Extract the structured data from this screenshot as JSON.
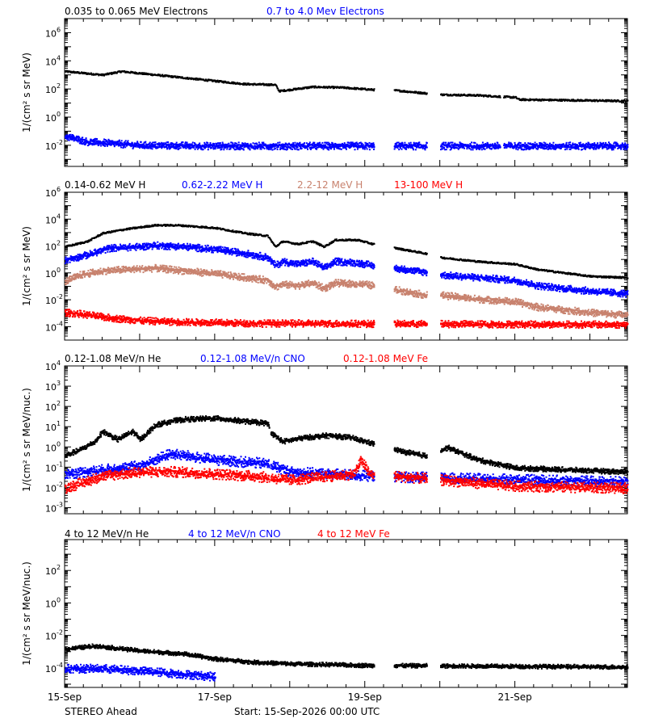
{
  "colors": {
    "black": "#000000",
    "blue": "#0000ff",
    "tan": "#c8826e",
    "red": "#ff0000"
  },
  "footer": {
    "left": "STEREO Ahead",
    "center": "Start: 15-Sep-2026 00:00 UTC"
  },
  "x_axis": {
    "range_days": [
      0,
      7.5
    ],
    "tick_labels": [
      "15-Sep",
      "17-Sep",
      "19-Sep",
      "21-Sep"
    ],
    "tick_days": [
      0,
      2,
      4,
      6
    ]
  },
  "chart_data": [
    {
      "type": "scatter",
      "ylabel": "1/(cm² s sr MeV)",
      "yscale": "log",
      "ylim_exp": [
        -3.5,
        7
      ],
      "ytick_exp": [
        -2,
        0,
        2,
        4,
        6
      ],
      "data_gaps_days": [
        [
          4.12,
          4.38
        ],
        [
          4.82,
          5.0
        ],
        [
          5.8,
          5.84
        ]
      ],
      "series": [
        {
          "name": "0.035 to 0.065 MeV Electrons",
          "color": "#000000",
          "log_points": [
            [
              0,
              3.3
            ],
            [
              0.5,
              3.05
            ],
            [
              0.75,
              3.3
            ],
            [
              1.3,
              3.0
            ],
            [
              2.4,
              2.4
            ],
            [
              2.8,
              2.35
            ],
            [
              2.85,
              1.9
            ],
            [
              3.3,
              2.2
            ],
            [
              3.7,
              2.15
            ],
            [
              4.1,
              2.0
            ],
            [
              4.4,
              1.95
            ],
            [
              4.8,
              1.75
            ],
            [
              5.0,
              1.65
            ],
            [
              5.5,
              1.6
            ],
            [
              6.0,
              1.45
            ],
            [
              6.05,
              1.3
            ],
            [
              7.5,
              1.2
            ]
          ]
        },
        {
          "name": "0.7 to 4.0 Mev Electrons",
          "color": "#0000ff",
          "log_points": [
            [
              0,
              -1.3
            ],
            [
              0.3,
              -1.7
            ],
            [
              1.0,
              -1.95
            ],
            [
              2.0,
              -2.0
            ],
            [
              3.0,
              -2.0
            ],
            [
              7.5,
              -2.0
            ]
          ]
        }
      ]
    },
    {
      "type": "scatter",
      "ylabel": "1/(cm² s sr MeV)",
      "yscale": "log",
      "ylim_exp": [
        -5,
        6
      ],
      "ytick_exp": [
        -4,
        -2,
        0,
        2,
        4,
        6
      ],
      "data_gaps_days": [
        [
          4.12,
          4.38
        ],
        [
          4.82,
          5.0
        ]
      ],
      "series": [
        {
          "name": "0.14-0.62 MeV H",
          "color": "#000000",
          "log_points": [
            [
              0,
              2.0
            ],
            [
              0.3,
              2.4
            ],
            [
              0.5,
              3.0
            ],
            [
              0.8,
              3.3
            ],
            [
              1.2,
              3.6
            ],
            [
              1.5,
              3.6
            ],
            [
              2.0,
              3.4
            ],
            [
              2.4,
              3.0
            ],
            [
              2.7,
              2.8
            ],
            [
              2.8,
              2.0
            ],
            [
              2.9,
              2.4
            ],
            [
              3.1,
              2.2
            ],
            [
              3.3,
              2.4
            ],
            [
              3.45,
              2.0
            ],
            [
              3.6,
              2.5
            ],
            [
              3.9,
              2.5
            ],
            [
              4.1,
              2.2
            ],
            [
              4.4,
              1.9
            ],
            [
              4.8,
              1.5
            ],
            [
              5.0,
              1.2
            ],
            [
              5.5,
              0.9
            ],
            [
              6.0,
              0.7
            ],
            [
              6.3,
              0.3
            ],
            [
              7.0,
              -0.2
            ],
            [
              7.5,
              -0.3
            ]
          ]
        },
        {
          "name": "0.62-2.22 MeV H",
          "color": "#0000ff",
          "log_points": [
            [
              0,
              1.0
            ],
            [
              0.3,
              1.4
            ],
            [
              0.6,
              1.9
            ],
            [
              1.0,
              2.0
            ],
            [
              1.2,
              2.1
            ],
            [
              1.6,
              2.0
            ],
            [
              2.0,
              1.8
            ],
            [
              2.4,
              1.5
            ],
            [
              2.7,
              1.2
            ],
            [
              2.8,
              0.6
            ],
            [
              2.9,
              0.9
            ],
            [
              3.1,
              0.7
            ],
            [
              3.3,
              0.9
            ],
            [
              3.45,
              0.4
            ],
            [
              3.6,
              0.9
            ],
            [
              3.9,
              0.8
            ],
            [
              4.1,
              0.6
            ],
            [
              4.4,
              0.4
            ],
            [
              4.8,
              0.1
            ],
            [
              5.0,
              -0.1
            ],
            [
              5.5,
              -0.3
            ],
            [
              6.0,
              -0.5
            ],
            [
              6.3,
              -0.9
            ],
            [
              7.0,
              -1.3
            ],
            [
              7.5,
              -1.5
            ]
          ]
        },
        {
          "name": "2.2-12 MeV H",
          "color": "#c8826e",
          "log_points": [
            [
              0,
              -0.6
            ],
            [
              0.2,
              -0.1
            ],
            [
              0.5,
              0.2
            ],
            [
              0.8,
              0.3
            ],
            [
              1.2,
              0.4
            ],
            [
              1.6,
              0.2
            ],
            [
              2.0,
              0.0
            ],
            [
              2.4,
              -0.3
            ],
            [
              2.7,
              -0.5
            ],
            [
              2.8,
              -1.0
            ],
            [
              2.9,
              -0.8
            ],
            [
              3.1,
              -0.9
            ],
            [
              3.3,
              -0.7
            ],
            [
              3.45,
              -1.1
            ],
            [
              3.6,
              -0.7
            ],
            [
              4.0,
              -0.8
            ],
            [
              4.1,
              -0.9
            ],
            [
              4.4,
              -1.2
            ],
            [
              4.8,
              -1.6
            ],
            [
              5.0,
              -1.6
            ],
            [
              5.5,
              -1.9
            ],
            [
              6.0,
              -2.1
            ],
            [
              6.3,
              -2.5
            ],
            [
              7.0,
              -2.9
            ],
            [
              7.5,
              -3.1
            ]
          ]
        },
        {
          "name": "13-100 MeV H",
          "color": "#ff0000",
          "log_points": [
            [
              0,
              -2.9
            ],
            [
              0.2,
              -3.0
            ],
            [
              0.6,
              -3.3
            ],
            [
              1.0,
              -3.5
            ],
            [
              1.5,
              -3.6
            ],
            [
              2.5,
              -3.7
            ],
            [
              7.5,
              -3.8
            ]
          ]
        }
      ]
    },
    {
      "type": "scatter",
      "ylabel": "1/(cm² s sr MeV/nuc.)",
      "yscale": "log",
      "ylim_exp": [
        -3.3,
        4
      ],
      "ytick_exp": [
        -3,
        -2,
        -1,
        0,
        1,
        2,
        3,
        4
      ],
      "data_gaps_days": [
        [
          2.72,
          2.74
        ],
        [
          4.12,
          4.38
        ],
        [
          4.82,
          5.0
        ]
      ],
      "series": [
        {
          "name": "0.12-1.08 MeV/n He",
          "color": "#000000",
          "log_points": [
            [
              0,
              -0.4
            ],
            [
              0.2,
              -0.1
            ],
            [
              0.4,
              0.3
            ],
            [
              0.5,
              0.8
            ],
            [
              0.7,
              0.4
            ],
            [
              0.9,
              0.8
            ],
            [
              1.0,
              0.4
            ],
            [
              1.2,
              1.1
            ],
            [
              1.4,
              1.3
            ],
            [
              1.6,
              1.4
            ],
            [
              2.0,
              1.45
            ],
            [
              2.4,
              1.3
            ],
            [
              2.7,
              1.2
            ],
            [
              2.75,
              0.7
            ],
            [
              2.9,
              0.3
            ],
            [
              3.2,
              0.5
            ],
            [
              3.5,
              0.6
            ],
            [
              3.8,
              0.5
            ],
            [
              4.1,
              0.2
            ],
            [
              4.5,
              -0.2
            ],
            [
              4.8,
              -0.4
            ],
            [
              5.1,
              0.0
            ],
            [
              5.5,
              -0.6
            ],
            [
              6.0,
              -1.0
            ],
            [
              7.5,
              -1.2
            ]
          ]
        },
        {
          "name": "0.12-1.08 MeV/n CNO",
          "color": "#0000ff",
          "log_points": [
            [
              0,
              -1.3
            ],
            [
              0.5,
              -1.1
            ],
            [
              1.0,
              -0.9
            ],
            [
              1.4,
              -0.3
            ],
            [
              2.0,
              -0.6
            ],
            [
              2.7,
              -0.8
            ],
            [
              3.0,
              -1.2
            ],
            [
              4.1,
              -1.4
            ],
            [
              5.0,
              -1.5
            ],
            [
              7.5,
              -1.7
            ]
          ]
        },
        {
          "name": "0.12-1.08 MeV Fe",
          "color": "#ff0000",
          "log_points": [
            [
              0,
              -2.0
            ],
            [
              0.5,
              -1.4
            ],
            [
              1.0,
              -1.2
            ],
            [
              1.5,
              -1.2
            ],
            [
              2.5,
              -1.4
            ],
            [
              3.0,
              -1.6
            ],
            [
              3.85,
              -1.3
            ],
            [
              3.95,
              -0.6
            ],
            [
              4.05,
              -1.3
            ],
            [
              5.0,
              -1.6
            ],
            [
              6.0,
              -1.9
            ],
            [
              7.5,
              -2.0
            ]
          ]
        }
      ]
    },
    {
      "type": "scatter",
      "ylabel": "1/(cm² s sr MeV/nuc.)",
      "yscale": "log",
      "ylim_exp": [
        -5.2,
        3.9
      ],
      "ytick_exp": [
        -4,
        -2,
        0,
        2
      ],
      "data_gaps_days": [
        [
          4.12,
          4.38
        ],
        [
          4.82,
          5.0
        ]
      ],
      "series": [
        {
          "name": "4 to 12 MeV/n He",
          "color": "#000000",
          "log_points": [
            [
              0,
              -2.8
            ],
            [
              0.4,
              -2.6
            ],
            [
              1.0,
              -2.9
            ],
            [
              1.6,
              -3.1
            ],
            [
              2.0,
              -3.4
            ],
            [
              2.5,
              -3.6
            ],
            [
              3.0,
              -3.7
            ],
            [
              4.0,
              -3.8
            ],
            [
              7.5,
              -3.9
            ]
          ]
        },
        {
          "name": "4 to 12 MeV/n CNO",
          "color": "#0000ff",
          "log_points": [
            [
              0,
              -4.0
            ],
            [
              0.5,
              -4.0
            ],
            [
              1.2,
              -4.2
            ],
            [
              2.0,
              -4.5
            ]
          ]
        },
        {
          "name": "4 to 12 MeV Fe",
          "color": "#ff0000",
          "log_points": []
        }
      ]
    }
  ]
}
